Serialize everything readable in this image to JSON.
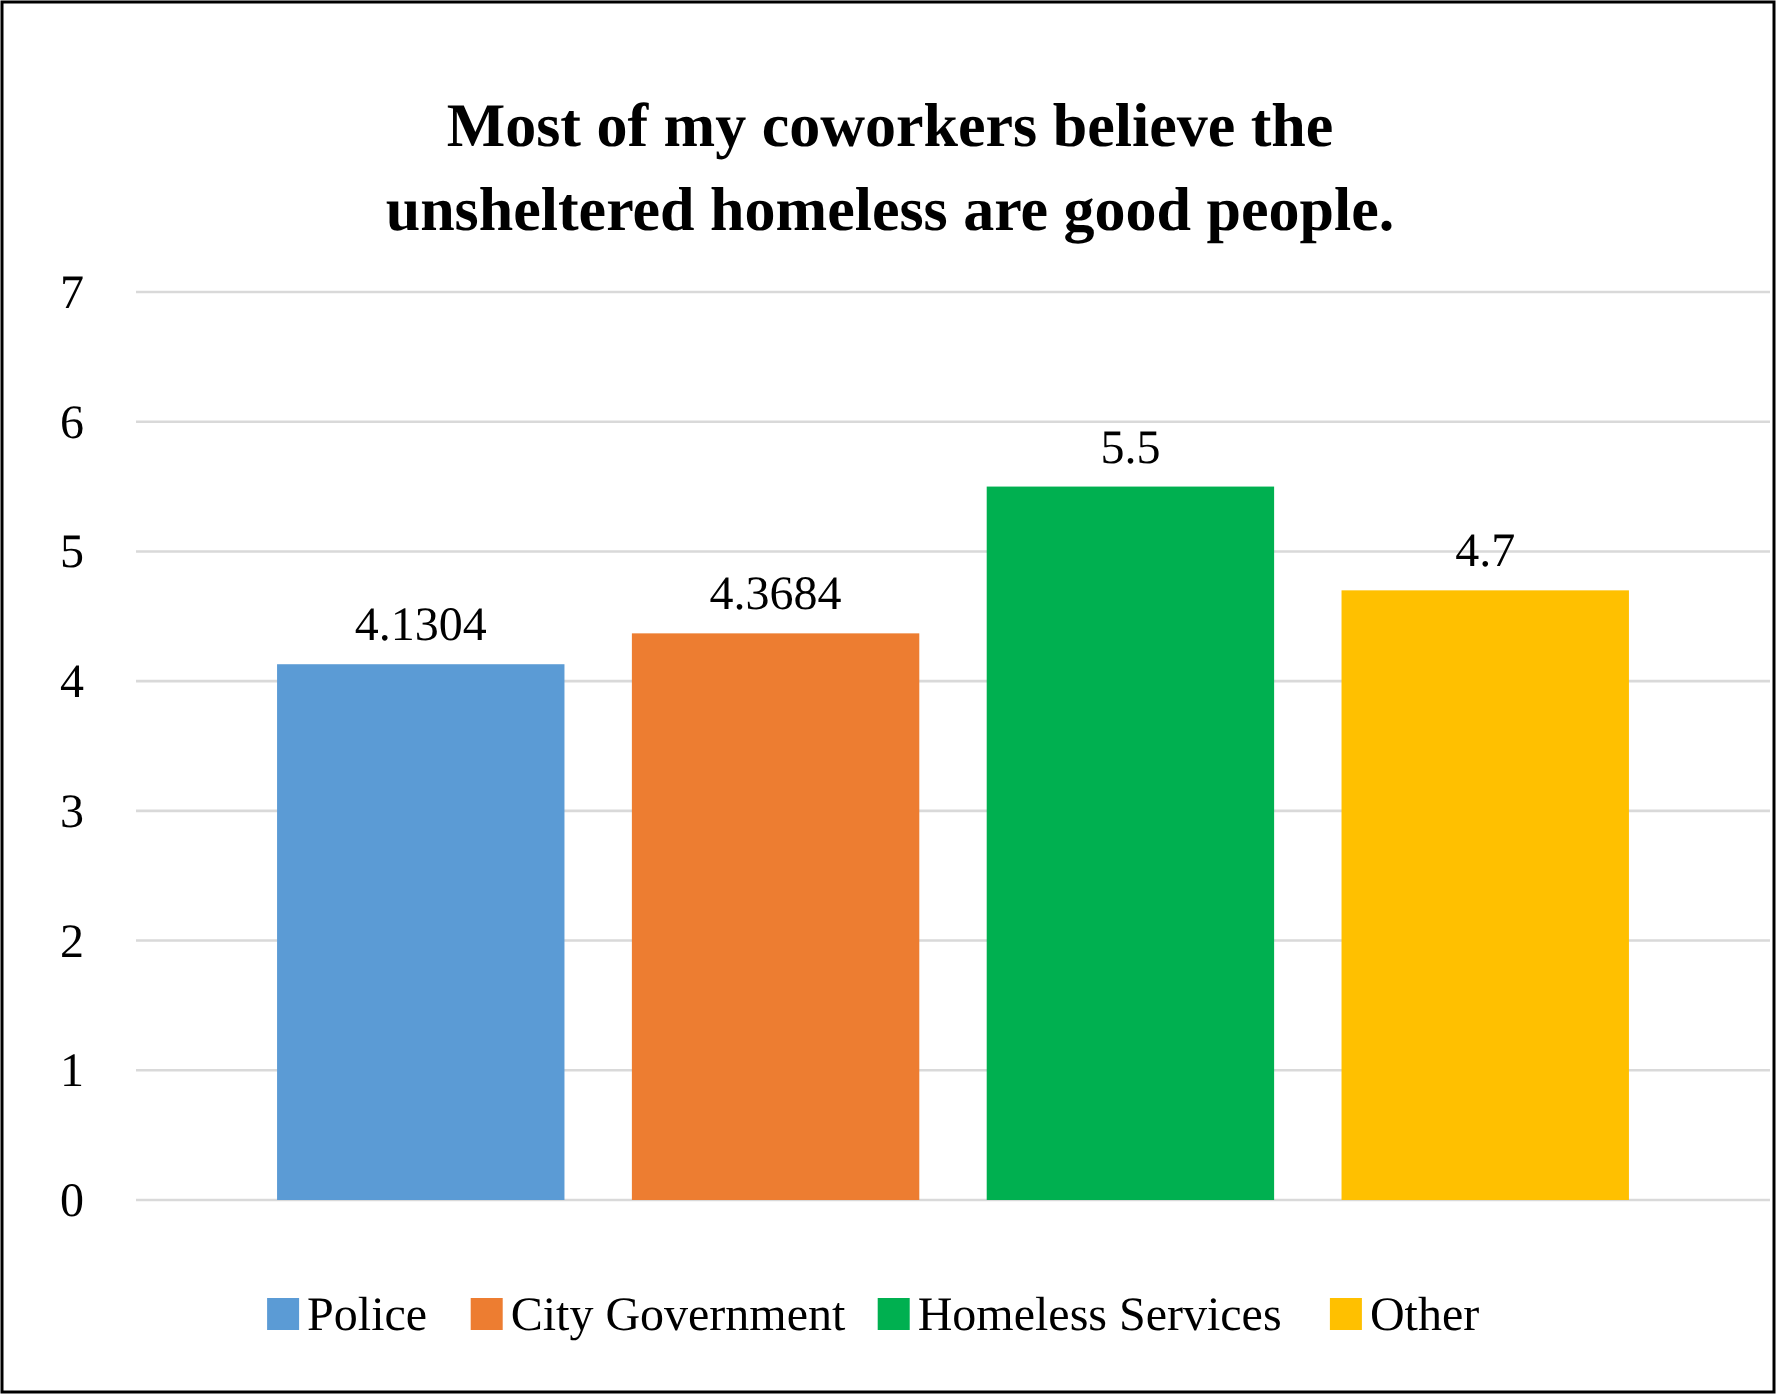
{
  "chart_data": {
    "type": "bar",
    "title": "Most of my coworkers believe the\nunsheltered homeless are good people.",
    "categories": [
      null
    ],
    "series": [
      {
        "name": "Police",
        "color": "#5b9bd5",
        "values": [
          4.1304
        ]
      },
      {
        "name": "City Government",
        "color": "#ed7d31",
        "values": [
          4.3684
        ]
      },
      {
        "name": "Homeless Services",
        "color": "#00b050",
        "values": [
          5.5
        ]
      },
      {
        "name": "Other",
        "color": "#ffc000",
        "values": [
          4.7
        ]
      }
    ],
    "ylim": [
      0,
      7
    ],
    "yticks": [
      0,
      1,
      2,
      3,
      4,
      5,
      6,
      7
    ],
    "grid": "y",
    "legend": "bottom",
    "data_labels": true
  }
}
